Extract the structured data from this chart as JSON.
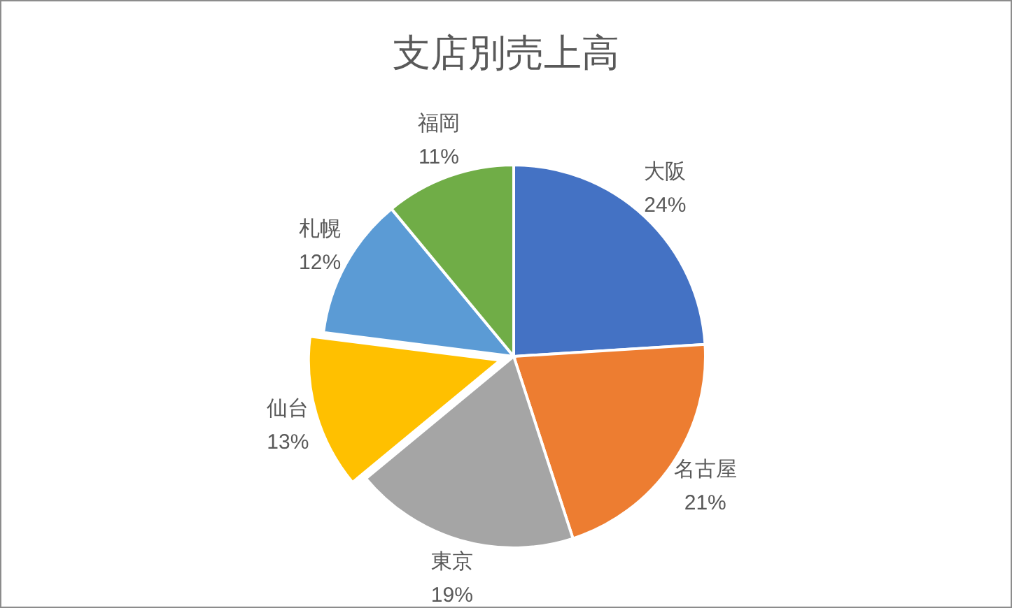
{
  "chart_data": {
    "type": "pie",
    "title": "支店別売上高",
    "categories": [
      "大阪",
      "名古屋",
      "東京",
      "仙台",
      "札幌",
      "福岡"
    ],
    "values": [
      24,
      21,
      19,
      13,
      12,
      11
    ],
    "colors": [
      "#4472c4",
      "#ed7d31",
      "#a5a5a5",
      "#ffc000",
      "#5b9bd5",
      "#70ad47"
    ],
    "value_labels": [
      "24%",
      "21%",
      "19%",
      "13%",
      "12%",
      "11%"
    ]
  }
}
